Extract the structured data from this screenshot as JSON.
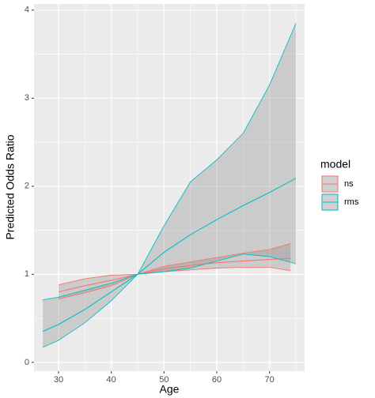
{
  "chart_data": {
    "type": "ribbon-line",
    "x_label": "Age",
    "y_label": "Predicted Odds Ratio",
    "legend_title": "model",
    "legend_position": "right",
    "xlim": [
      25.35,
      76.65
    ],
    "ylim": [
      -0.1,
      4.07
    ],
    "xticks": [
      30,
      40,
      50,
      60,
      70
    ],
    "yticks": [
      0,
      1,
      2,
      3,
      4
    ],
    "minor_xticks": [
      35,
      45,
      55,
      65,
      75
    ],
    "minor_yticks": [
      0.5,
      1.5,
      2.5,
      3.5
    ],
    "grid": true,
    "panel_color": "#ebebeb",
    "ribbon_color": "#808080",
    "series": [
      {
        "name": "ns",
        "color": "#F8766D",
        "x": [
          30,
          35,
          40,
          45,
          50,
          55,
          60,
          65,
          70,
          74
        ],
        "values": [
          0.8,
          0.87,
          0.93,
          1.0,
          1.06,
          1.1,
          1.13,
          1.15,
          1.17,
          1.18
        ],
        "upper": [
          0.88,
          0.95,
          0.99,
          1.0,
          1.09,
          1.14,
          1.19,
          1.24,
          1.28,
          1.35
        ],
        "lower": [
          0.72,
          0.79,
          0.87,
          1.0,
          1.03,
          1.05,
          1.07,
          1.08,
          1.08,
          1.04
        ]
      },
      {
        "name": "rms",
        "color": "#00BFC4",
        "x": [
          27,
          30,
          35,
          40,
          45,
          50,
          55,
          60,
          65,
          70,
          75
        ],
        "values": [
          0.35,
          0.43,
          0.6,
          0.8,
          1.0,
          1.25,
          1.45,
          1.62,
          1.78,
          1.93,
          2.09
        ],
        "upper": [
          0.71,
          0.74,
          0.82,
          0.9,
          1.0,
          1.55,
          2.05,
          2.3,
          2.6,
          3.15,
          3.85
        ],
        "lower": [
          0.17,
          0.25,
          0.45,
          0.7,
          1.0,
          1.03,
          1.07,
          1.15,
          1.23,
          1.2,
          1.12
        ]
      }
    ]
  }
}
